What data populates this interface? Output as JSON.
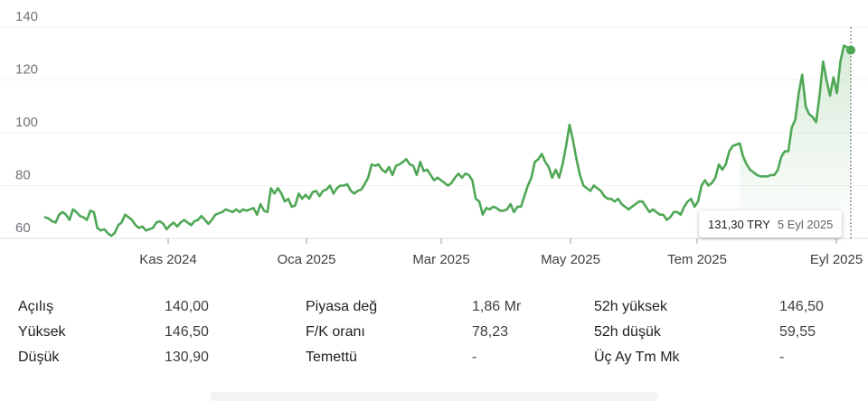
{
  "chart_data": {
    "type": "line",
    "y_ticks": [
      "60",
      "80",
      "100",
      "120",
      "140"
    ],
    "ylim": [
      60,
      140
    ],
    "x_ticks": [
      "Kas 2024",
      "Oca 2025",
      "Mar 2025",
      "May 2025",
      "Tem 2025",
      "Eyl 2025"
    ],
    "series": [
      {
        "values": [
          68,
          67.5,
          66.5,
          66,
          69,
          70,
          69,
          67,
          71,
          70,
          68.5,
          68,
          67,
          70.5,
          70,
          64,
          63,
          63.5,
          62,
          61,
          62,
          65,
          66,
          69,
          68,
          67,
          65,
          64,
          64.5,
          63,
          63.5,
          64,
          66,
          66.5,
          65.5,
          63.5,
          65,
          66,
          64.5,
          66,
          67,
          66,
          65,
          66.5,
          67,
          68.5,
          67,
          65.5,
          67,
          69,
          69.5,
          70,
          71,
          70.5,
          70,
          71,
          70,
          71,
          70.5,
          71,
          71.5,
          69,
          73,
          70.5,
          70,
          79,
          77,
          79,
          77,
          74,
          75,
          72,
          72.5,
          77,
          75,
          76.5,
          75,
          77.5,
          78,
          76,
          78,
          78.5,
          80,
          77,
          79,
          80,
          80,
          80.5,
          78,
          77,
          78,
          78.5,
          80.5,
          83,
          88,
          87.5,
          88,
          86,
          85,
          87,
          84,
          87.5,
          88,
          89,
          90,
          88,
          87.5,
          84,
          89,
          85.5,
          86,
          84,
          82,
          83,
          82,
          81,
          80,
          81,
          83,
          84.5,
          83,
          84.5,
          84,
          82,
          75,
          74,
          69,
          71.5,
          71,
          72,
          71.5,
          70.5,
          70.5,
          71,
          73,
          70,
          72,
          72,
          76,
          80,
          83,
          89,
          90,
          92,
          89,
          87,
          83,
          86,
          83,
          88,
          95,
          103,
          97,
          90,
          84,
          80,
          79,
          78,
          80,
          79,
          78,
          76,
          75,
          75,
          74,
          75,
          73,
          72,
          71,
          72,
          73,
          74,
          74,
          72,
          70,
          71,
          70,
          69,
          69,
          67,
          68,
          70,
          70,
          69,
          72,
          74,
          75,
          72,
          74,
          80,
          82,
          80,
          81,
          83,
          88,
          86,
          88,
          93,
          95,
          95.5,
          96,
          91,
          88,
          86,
          85,
          84,
          83.5,
          83.5,
          83.5,
          84,
          84,
          86,
          91,
          93,
          93,
          102,
          105,
          115,
          122,
          110,
          107,
          106,
          104,
          114,
          127,
          120,
          114,
          121,
          115,
          127,
          133,
          132.3,
          131.3
        ]
      }
    ],
    "tooltip": {
      "price": "131,30 TRY",
      "date": "5 Eyl 2025"
    },
    "line_color": "#4ea755",
    "grid": true
  },
  "stats": {
    "rows": [
      {
        "l1": "Açılış",
        "v1": "140,00",
        "l2": "Piyasa değ",
        "v2": "1,86 Mr",
        "l3": "52h yüksek",
        "v3": "146,50"
      },
      {
        "l1": "Yüksek",
        "v1": "146,50",
        "l2": "F/K oranı",
        "v2": "78,23",
        "l3": "52h düşük",
        "v3": "59,55"
      },
      {
        "l1": "Düşük",
        "v1": "130,90",
        "l2": "Temettü",
        "v2": "-",
        "l3": "Üç Ay Tm Mk",
        "v3": "-"
      }
    ]
  }
}
